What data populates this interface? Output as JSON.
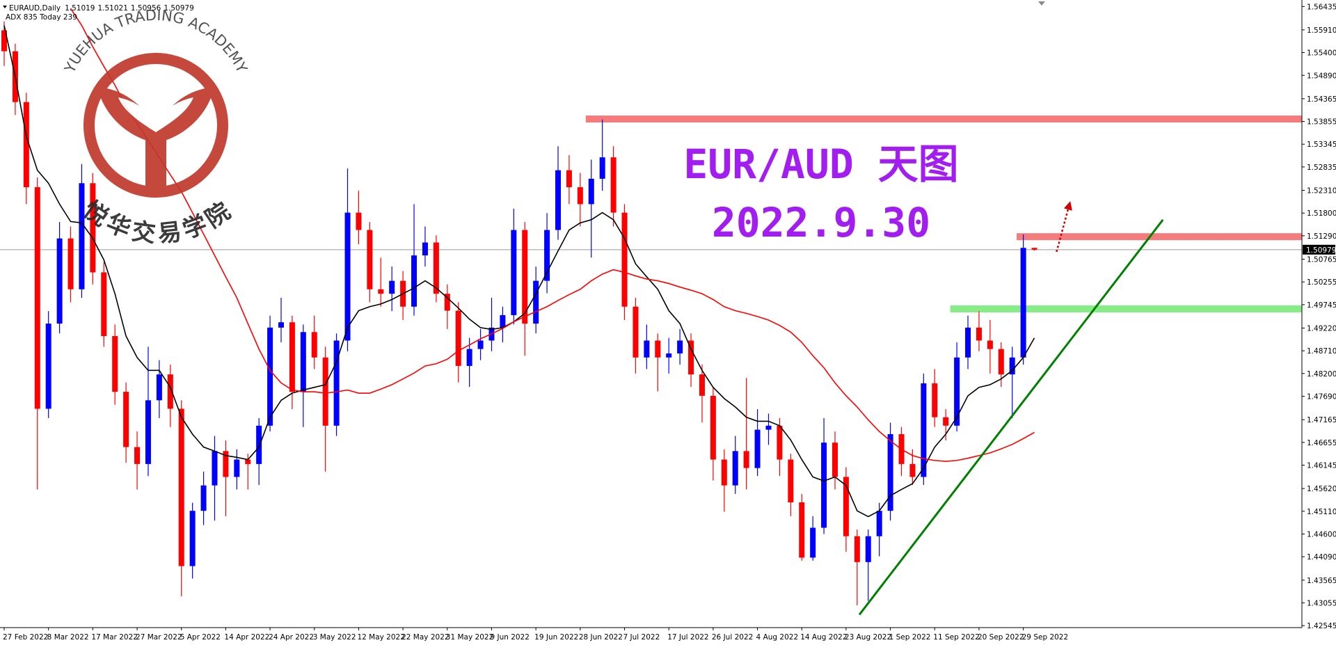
{
  "chart_data": {
    "type": "candlestick",
    "symbol": "EURAUD,Daily",
    "info": "ADX 835  Today 239",
    "title": "EUR/AUD 天图",
    "subtitle": "2022.9.30",
    "watermark": [
      "YUEHUA TRADING ACADEMY",
      "悦华交易学院"
    ],
    "up_color": "#0000ff",
    "down_color": "#ff0000",
    "categories": [
      "27 Feb 2022",
      null,
      null,
      null,
      "8 Mar 2022",
      null,
      null,
      null,
      "17 Mar 2022",
      null,
      null,
      null,
      "27 Mar 2022",
      null,
      null,
      null,
      "5 Apr 2022",
      null,
      null,
      null,
      "14 Apr 2022",
      null,
      null,
      null,
      "24 Apr 2022",
      null,
      null,
      null,
      "3 May 2022",
      null,
      null,
      null,
      "12 May 2022",
      null,
      null,
      null,
      "22 May 2022",
      null,
      null,
      null,
      "31 May 2022",
      null,
      null,
      null,
      "9 Jun 2022",
      null,
      null,
      null,
      "19 Jun 2022",
      null,
      null,
      null,
      "28 Jun 2022",
      null,
      null,
      null,
      "7 Jul 2022",
      null,
      null,
      null,
      "17 Jul 2022",
      null,
      null,
      null,
      "26 Jul 2022",
      null,
      null,
      null,
      "4 Aug 2022",
      null,
      null,
      null,
      "14 Aug 2022",
      null,
      null,
      null,
      "23 Aug 2022",
      null,
      null,
      null,
      "1 Sep 2022",
      null,
      null,
      null,
      "11 Sep 2022",
      null,
      null,
      null,
      "20 Sep 2022",
      null,
      null,
      null,
      "29 Sep 2022",
      null
    ],
    "ohlc": [
      [
        1.559,
        1.561,
        1.551,
        1.5543
      ],
      [
        1.5543,
        1.556,
        1.54,
        1.5429
      ],
      [
        1.5429,
        1.545,
        1.52,
        1.5238
      ],
      [
        1.5238,
        1.526,
        1.456,
        1.4741
      ],
      [
        1.4741,
        1.496,
        1.472,
        1.4932
      ],
      [
        1.4932,
        1.516,
        1.491,
        1.5123
      ],
      [
        1.5123,
        1.515,
        1.498,
        1.5009
      ],
      [
        1.5009,
        1.529,
        1.499,
        1.5247
      ],
      [
        1.5247,
        1.527,
        1.502,
        1.5047
      ],
      [
        1.5047,
        1.507,
        1.488,
        1.4904
      ],
      [
        1.4904,
        1.493,
        1.475,
        1.4779
      ],
      [
        1.4779,
        1.48,
        1.462,
        1.4655
      ],
      [
        1.4655,
        1.469,
        1.456,
        1.4617
      ],
      [
        1.4617,
        1.488,
        1.459,
        1.476
      ],
      [
        1.476,
        1.485,
        1.472,
        1.4818
      ],
      [
        1.4818,
        1.484,
        1.47,
        1.4741
      ],
      [
        1.4741,
        1.476,
        1.432,
        1.4388
      ],
      [
        1.4388,
        1.453,
        1.436,
        1.4512
      ],
      [
        1.4512,
        1.46,
        1.448,
        1.4569
      ],
      [
        1.4569,
        1.468,
        1.449,
        1.4646
      ],
      [
        1.4646,
        1.467,
        1.45,
        1.4588
      ],
      [
        1.4588,
        1.465,
        1.456,
        1.4627
      ],
      [
        1.4627,
        1.464,
        1.456,
        1.4617
      ],
      [
        1.4617,
        1.472,
        1.457,
        1.4703
      ],
      [
        1.4703,
        1.495,
        1.469,
        1.4923
      ],
      [
        1.4923,
        1.499,
        1.489,
        1.4935
      ],
      [
        1.4935,
        1.495,
        1.474,
        1.4779
      ],
      [
        1.4779,
        1.493,
        1.47,
        1.4913
      ],
      [
        1.4913,
        1.495,
        1.483,
        1.4856
      ],
      [
        1.4856,
        1.488,
        1.46,
        1.4703
      ],
      [
        1.4703,
        1.491,
        1.468,
        1.4894
      ],
      [
        1.4894,
        1.528,
        1.487,
        1.5181
      ],
      [
        1.5181,
        1.523,
        1.511,
        1.5142
      ],
      [
        1.5142,
        1.516,
        1.498,
        1.5009
      ],
      [
        1.5009,
        1.508,
        1.497,
        1.4999
      ],
      [
        1.4999,
        1.506,
        1.496,
        1.5028
      ],
      [
        1.5028,
        1.505,
        1.494,
        1.497
      ],
      [
        1.497,
        1.52,
        1.495,
        1.5085
      ],
      [
        1.5085,
        1.515,
        1.506,
        1.5114
      ],
      [
        1.5114,
        1.513,
        1.498,
        1.4999
      ],
      [
        1.4999,
        1.502,
        1.492,
        1.4961
      ],
      [
        1.4961,
        1.498,
        1.48,
        1.4837
      ],
      [
        1.4837,
        1.49,
        1.479,
        1.4875
      ],
      [
        1.4875,
        1.492,
        1.485,
        1.4894
      ],
      [
        1.4894,
        1.499,
        1.487,
        1.4923
      ],
      [
        1.4923,
        1.497,
        1.489,
        1.4951
      ],
      [
        1.4951,
        1.519,
        1.493,
        1.5142
      ],
      [
        1.5142,
        1.516,
        1.486,
        1.4932
      ],
      [
        1.4932,
        1.506,
        1.491,
        1.5028
      ],
      [
        1.5028,
        1.518,
        1.5,
        1.5142
      ],
      [
        1.5142,
        1.533,
        1.512,
        1.5276
      ],
      [
        1.5276,
        1.531,
        1.52,
        1.5238
      ],
      [
        1.5238,
        1.527,
        1.515,
        1.52
      ],
      [
        1.52,
        1.53,
        1.508,
        1.5257
      ],
      [
        1.5257,
        1.539,
        1.523,
        1.5305
      ],
      [
        1.5305,
        1.533,
        1.515,
        1.5181
      ],
      [
        1.5181,
        1.52,
        1.494,
        1.497
      ],
      [
        1.497,
        1.499,
        1.482,
        1.4856
      ],
      [
        1.4856,
        1.493,
        1.483,
        1.4894
      ],
      [
        1.4894,
        1.491,
        1.478,
        1.4856
      ],
      [
        1.4856,
        1.49,
        1.482,
        1.4865
      ],
      [
        1.4865,
        1.492,
        1.484,
        1.4894
      ],
      [
        1.4894,
        1.491,
        1.479,
        1.4818
      ],
      [
        1.4818,
        1.484,
        1.471,
        1.477
      ],
      [
        1.477,
        1.479,
        1.458,
        1.4627
      ],
      [
        1.4627,
        1.465,
        1.451,
        1.4569
      ],
      [
        1.4569,
        1.468,
        1.455,
        1.4646
      ],
      [
        1.4646,
        1.481,
        1.456,
        1.4608
      ],
      [
        1.4608,
        1.474,
        1.459,
        1.4694
      ],
      [
        1.4694,
        1.473,
        1.466,
        1.4703
      ],
      [
        1.4703,
        1.472,
        1.459,
        1.4627
      ],
      [
        1.4627,
        1.464,
        1.45,
        1.4531
      ],
      [
        1.4531,
        1.455,
        1.44,
        1.4407
      ],
      [
        1.4407,
        1.45,
        1.44,
        1.4474
      ],
      [
        1.4474,
        1.472,
        1.446,
        1.4665
      ],
      [
        1.4665,
        1.469,
        1.456,
        1.4588
      ],
      [
        1.4588,
        1.461,
        1.442,
        1.4455
      ],
      [
        1.4455,
        1.447,
        1.43,
        1.4397
      ],
      [
        1.4397,
        1.447,
        1.431,
        1.4455
      ],
      [
        1.4455,
        1.453,
        1.441,
        1.4512
      ],
      [
        1.4512,
        1.471,
        1.449,
        1.4684
      ],
      [
        1.4684,
        1.47,
        1.459,
        1.4617
      ],
      [
        1.4617,
        1.465,
        1.457,
        1.4588
      ],
      [
        1.4588,
        1.482,
        1.457,
        1.4798
      ],
      [
        1.4798,
        1.483,
        1.47,
        1.4722
      ],
      [
        1.4722,
        1.474,
        1.467,
        1.4703
      ],
      [
        1.4703,
        1.489,
        1.469,
        1.4856
      ],
      [
        1.4856,
        1.495,
        1.483,
        1.4923
      ],
      [
        1.4923,
        1.496,
        1.487,
        1.4894
      ],
      [
        1.4894,
        1.494,
        1.482,
        1.4875
      ],
      [
        1.4875,
        1.489,
        1.479,
        1.4818
      ],
      [
        1.4818,
        1.488,
        1.472,
        1.4856
      ],
      [
        1.4856,
        1.5132,
        1.484,
        1.5102
      ],
      [
        1.51019,
        1.51021,
        1.50956,
        1.50979
      ]
    ],
    "moving_averages": [
      {
        "color": "#000000",
        "values": [
          1.5601,
          1.5486,
          1.5352,
          1.5276,
          1.5247,
          1.52,
          1.5161,
          1.5158,
          1.5123,
          1.5075,
          1.4999,
          1.4904,
          1.4856,
          1.4827,
          1.4827,
          1.4789,
          1.4722,
          1.4684,
          1.4655,
          1.4646,
          1.4636,
          1.4632,
          1.4627,
          1.4655,
          1.4722,
          1.476,
          1.4776,
          1.4783,
          1.4789,
          1.4795,
          1.4846,
          1.4923,
          1.4961,
          1.497,
          1.4976,
          1.4986,
          1.4999,
          1.5012,
          1.5028,
          1.5012,
          1.499,
          1.4967,
          1.4942,
          1.4923,
          1.4919,
          1.4923,
          1.4936,
          1.4955,
          1.4999,
          1.5047,
          1.5095,
          1.5142,
          1.5158,
          1.5165,
          1.5181,
          1.5165,
          1.5123,
          1.5066,
          1.5037,
          1.5009,
          1.4961,
          1.4932,
          1.4875,
          1.4827,
          1.4789,
          1.4764,
          1.4745,
          1.4722,
          1.4713,
          1.4713,
          1.4703,
          1.4671,
          1.4627,
          1.4588,
          1.4579,
          1.4588,
          1.4569,
          1.4512,
          1.4499,
          1.4512,
          1.4546,
          1.456,
          1.4573,
          1.4608,
          1.4655,
          1.4684,
          1.4722,
          1.477,
          1.4789,
          1.4795,
          1.4808,
          1.4827,
          1.4856,
          1.49
        ]
      },
      {
        "color": "#ff0000",
        "values": [
          null,
          null,
          null,
          null,
          null,
          null,
          1.5639,
          1.5601,
          1.5553,
          1.5509,
          1.5467,
          1.5419,
          1.5381,
          1.5343,
          1.5305,
          1.5266,
          1.5228,
          1.5181,
          1.5133,
          1.5085,
          1.5037,
          1.499,
          1.4932,
          1.4875,
          1.4827,
          1.4799,
          1.4783,
          1.4779,
          1.4779,
          1.4776,
          1.4779,
          1.4783,
          1.4776,
          1.4776,
          1.4785,
          1.4795,
          1.4808,
          1.4821,
          1.4837,
          1.4842,
          1.4852,
          1.4871,
          1.4884,
          1.4898,
          1.4909,
          1.4921,
          1.4936,
          1.4948,
          1.4959,
          1.497,
          1.4984,
          1.4997,
          1.5009,
          1.5028,
          1.5043,
          1.5053,
          1.5047,
          1.5039,
          1.5032,
          1.5028,
          1.5022,
          1.5014,
          1.5007,
          1.4999,
          1.4986,
          1.497,
          1.4961,
          1.4955,
          1.4948,
          1.494,
          1.4928,
          1.4913,
          1.489,
          1.486,
          1.4833,
          1.4799,
          1.477,
          1.4745,
          1.4716,
          1.469,
          1.4669,
          1.465,
          1.4636,
          1.4629,
          1.4625,
          1.4623,
          1.4625,
          1.463,
          1.4636,
          1.4642,
          1.4651,
          1.4661,
          1.4674,
          1.4688
        ]
      }
    ],
    "levels": [
      {
        "value": 1.5391,
        "from": 52.5,
        "color": "#f47c7c"
      },
      {
        "value": 1.5127,
        "from": 91.4,
        "color": "#f47c7c"
      },
      {
        "value": 1.4965,
        "from": 85.4,
        "color": "#86ec86"
      }
    ],
    "trendline": {
      "color": "#008000",
      "points": [
        [
          77.2,
          1.4279
        ],
        [
          104.6,
          1.5165
        ]
      ]
    },
    "arrow": {
      "color": "#d00000",
      "points": [
        [
          95,
          1.5093
        ],
        [
          96.2,
          1.5203
        ]
      ]
    },
    "ylim": [
      1.425,
      1.5658
    ],
    "yticks": [
      1.56435,
      {
        "value": 1.5591,
        "label": "1.55910"
      },
      {
        "value": 1.554,
        "label": "1.55400"
      },
      {
        "value": 1.5489,
        "label": "1.54890"
      },
      1.54365,
      1.53855,
      1.53345,
      1.52835,
      {
        "value": 1.5231,
        "label": "1.52310"
      },
      {
        "value": 1.518,
        "label": "1.51800"
      },
      {
        "value": 1.5129,
        "label": "1.51290"
      },
      1.50765,
      1.50255,
      1.49745,
      {
        "value": 1.4922,
        "label": "1.49220"
      },
      {
        "value": 1.4871,
        "label": "1.48710"
      },
      {
        "value": 1.482,
        "label": "1.48200"
      },
      {
        "value": 1.4769,
        "label": "1.47690"
      },
      1.47165,
      1.46655,
      1.46145,
      {
        "value": 1.4562,
        "label": "1.45620"
      },
      {
        "value": 1.4511,
        "label": "1.45110"
      },
      {
        "value": 1.446,
        "label": "1.44600"
      },
      {
        "value": 1.4409,
        "label": "1.44090"
      },
      1.43565,
      1.43055,
      1.42545
    ]
  }
}
